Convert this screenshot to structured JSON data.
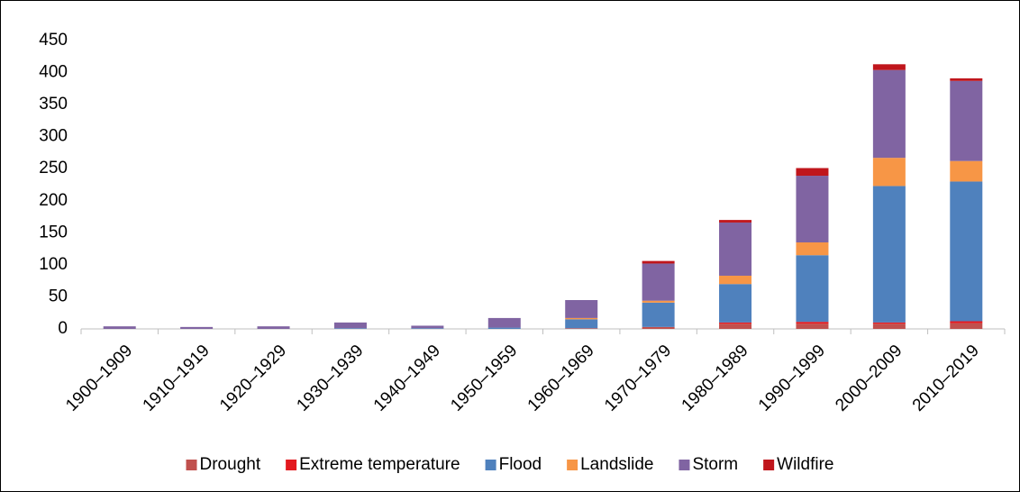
{
  "chart_data": {
    "type": "stacked-bar",
    "categories": [
      "1900–1909",
      "1910–1919",
      "1920–1929",
      "1930–1939",
      "1940–1949",
      "1950–1959",
      "1960–1969",
      "1970–1979",
      "1980–1989",
      "1990–1999",
      "2000–2009",
      "2010–2019"
    ],
    "series": [
      {
        "name": "Drought",
        "color": "#c0504d",
        "values": [
          0,
          0,
          0,
          0,
          0,
          0,
          1,
          3,
          8,
          8,
          8,
          9
        ]
      },
      {
        "name": "Extreme temperature",
        "color": "#e3191f",
        "values": [
          0,
          0,
          0,
          0,
          0,
          0,
          0,
          0,
          2,
          3,
          2,
          3
        ]
      },
      {
        "name": "Flood",
        "color": "#4f81bd",
        "values": [
          0,
          0,
          0,
          1,
          1,
          2,
          14,
          38,
          60,
          104,
          213,
          218
        ]
      },
      {
        "name": "Landslide",
        "color": "#f79646",
        "values": [
          0,
          0,
          0,
          0,
          0,
          0,
          2,
          3,
          13,
          20,
          44,
          32
        ]
      },
      {
        "name": "Storm",
        "color": "#8064a2",
        "values": [
          4,
          3,
          4,
          9,
          4,
          15,
          28,
          58,
          83,
          104,
          137,
          125
        ]
      },
      {
        "name": "Wildfire",
        "color": "#c0161c",
        "values": [
          0,
          0,
          0,
          0,
          0,
          0,
          0,
          4,
          4,
          12,
          9,
          4
        ]
      }
    ],
    "ylim": [
      0,
      450
    ],
    "yticks": [
      0,
      50,
      100,
      150,
      200,
      250,
      300,
      350,
      400,
      450
    ],
    "grid": false,
    "legend": "bottom"
  }
}
